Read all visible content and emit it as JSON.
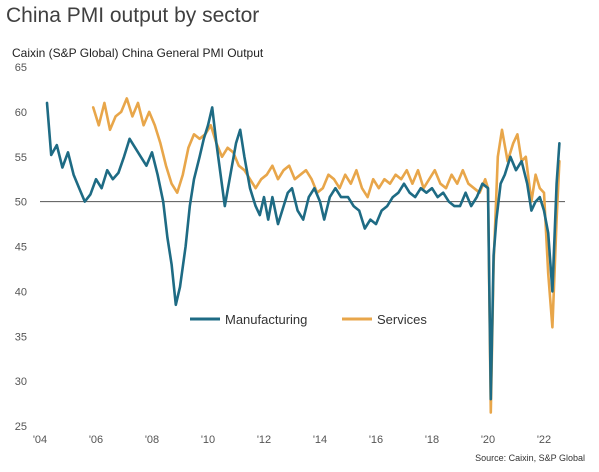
{
  "title": "China PMI output by sector",
  "subtitle": "Caixin (S&P Global) China General PMI Output",
  "source": "Source: Caixin, S&P Global",
  "colors": {
    "manufacturing": "#1e6b84",
    "services": "#e8a64a",
    "refline": "#555555"
  },
  "chart_data": {
    "type": "line",
    "ylim": [
      25,
      65
    ],
    "yticks": [
      25,
      30,
      35,
      40,
      45,
      50,
      55,
      60,
      65
    ],
    "xlim": [
      2004,
      2022.75
    ],
    "xticks": [
      {
        "value": 2004,
        "label": "'04"
      },
      {
        "value": 2006,
        "label": "'06"
      },
      {
        "value": 2008,
        "label": "'08"
      },
      {
        "value": 2010,
        "label": "'10"
      },
      {
        "value": 2012,
        "label": "'12"
      },
      {
        "value": 2014,
        "label": "'14"
      },
      {
        "value": 2016,
        "label": "'16"
      },
      {
        "value": 2018,
        "label": "'18"
      },
      {
        "value": 2020,
        "label": "'20"
      },
      {
        "value": 2022,
        "label": "'22"
      }
    ],
    "reference_line": 50,
    "legend": [
      "Manufacturing",
      "Services"
    ],
    "series": [
      {
        "name": "Manufacturing",
        "points": [
          [
            2004.25,
            61
          ],
          [
            2004.4,
            55.2
          ],
          [
            2004.6,
            56.3
          ],
          [
            2004.8,
            53.8
          ],
          [
            2005.0,
            55.5
          ],
          [
            2005.2,
            53.0
          ],
          [
            2005.4,
            51.5
          ],
          [
            2005.6,
            50.0
          ],
          [
            2005.8,
            50.8
          ],
          [
            2006.0,
            52.5
          ],
          [
            2006.2,
            51.5
          ],
          [
            2006.4,
            53.5
          ],
          [
            2006.6,
            52.5
          ],
          [
            2006.8,
            53.2
          ],
          [
            2007.0,
            55.0
          ],
          [
            2007.2,
            57.0
          ],
          [
            2007.4,
            56.0
          ],
          [
            2007.6,
            55.0
          ],
          [
            2007.8,
            54.0
          ],
          [
            2008.0,
            55.5
          ],
          [
            2008.2,
            53.0
          ],
          [
            2008.4,
            50.0
          ],
          [
            2008.55,
            46
          ],
          [
            2008.7,
            43
          ],
          [
            2008.85,
            38.5
          ],
          [
            2009.0,
            40.5
          ],
          [
            2009.2,
            45
          ],
          [
            2009.35,
            49.5
          ],
          [
            2009.5,
            52.5
          ],
          [
            2009.7,
            55
          ],
          [
            2009.85,
            57
          ],
          [
            2010.0,
            58.5
          ],
          [
            2010.15,
            60.5
          ],
          [
            2010.3,
            56.5
          ],
          [
            2010.45,
            53
          ],
          [
            2010.6,
            49.5
          ],
          [
            2010.8,
            53
          ],
          [
            2011.0,
            56.5
          ],
          [
            2011.15,
            58
          ],
          [
            2011.3,
            55
          ],
          [
            2011.5,
            51.5
          ],
          [
            2011.7,
            49.5
          ],
          [
            2011.85,
            48.5
          ],
          [
            2012.0,
            50.5
          ],
          [
            2012.15,
            48
          ],
          [
            2012.3,
            50.5
          ],
          [
            2012.5,
            47.5
          ],
          [
            2012.7,
            49.5
          ],
          [
            2012.85,
            51
          ],
          [
            2013.0,
            51.5
          ],
          [
            2013.2,
            49
          ],
          [
            2013.4,
            48
          ],
          [
            2013.6,
            50.5
          ],
          [
            2013.8,
            51.5
          ],
          [
            2014.0,
            50
          ],
          [
            2014.15,
            48
          ],
          [
            2014.35,
            50.5
          ],
          [
            2014.55,
            51.5
          ],
          [
            2014.75,
            50.5
          ],
          [
            2015.0,
            50.5
          ],
          [
            2015.2,
            49.5
          ],
          [
            2015.4,
            49
          ],
          [
            2015.6,
            47
          ],
          [
            2015.8,
            48
          ],
          [
            2016.0,
            47.5
          ],
          [
            2016.2,
            49
          ],
          [
            2016.4,
            49.5
          ],
          [
            2016.6,
            50.5
          ],
          [
            2016.8,
            51
          ],
          [
            2017.0,
            52
          ],
          [
            2017.2,
            51
          ],
          [
            2017.4,
            50.5
          ],
          [
            2017.6,
            51.5
          ],
          [
            2017.8,
            51
          ],
          [
            2018.0,
            51.5
          ],
          [
            2018.2,
            50.5
          ],
          [
            2018.4,
            51
          ],
          [
            2018.6,
            50
          ],
          [
            2018.8,
            49.5
          ],
          [
            2019.0,
            49.5
          ],
          [
            2019.2,
            51
          ],
          [
            2019.4,
            49.5
          ],
          [
            2019.6,
            50.5
          ],
          [
            2019.8,
            52
          ],
          [
            2020.0,
            51.5
          ],
          [
            2020.1,
            28
          ],
          [
            2020.2,
            44
          ],
          [
            2020.3,
            48
          ],
          [
            2020.45,
            52
          ],
          [
            2020.6,
            53
          ],
          [
            2020.8,
            55
          ],
          [
            2021.0,
            53.5
          ],
          [
            2021.2,
            54.5
          ],
          [
            2021.4,
            52
          ],
          [
            2021.55,
            49
          ],
          [
            2021.7,
            50
          ],
          [
            2021.85,
            50.5
          ],
          [
            2022.0,
            49
          ],
          [
            2022.15,
            46.5
          ],
          [
            2022.3,
            40
          ],
          [
            2022.45,
            52
          ],
          [
            2022.55,
            56.5
          ]
        ]
      },
      {
        "name": "Services",
        "points": [
          [
            2005.9,
            60.5
          ],
          [
            2006.1,
            58.5
          ],
          [
            2006.3,
            61
          ],
          [
            2006.5,
            58
          ],
          [
            2006.7,
            59.5
          ],
          [
            2006.9,
            60
          ],
          [
            2007.1,
            61.5
          ],
          [
            2007.3,
            59.5
          ],
          [
            2007.5,
            61
          ],
          [
            2007.7,
            58.5
          ],
          [
            2007.9,
            60
          ],
          [
            2008.1,
            58.5
          ],
          [
            2008.3,
            56.5
          ],
          [
            2008.5,
            54
          ],
          [
            2008.7,
            52
          ],
          [
            2008.9,
            51
          ],
          [
            2009.1,
            53
          ],
          [
            2009.3,
            56
          ],
          [
            2009.5,
            57.5
          ],
          [
            2009.7,
            57
          ],
          [
            2009.9,
            57.5
          ],
          [
            2010.1,
            58.5
          ],
          [
            2010.3,
            56.5
          ],
          [
            2010.5,
            55
          ],
          [
            2010.7,
            56
          ],
          [
            2010.9,
            55.5
          ],
          [
            2011.1,
            54
          ],
          [
            2011.3,
            53.5
          ],
          [
            2011.5,
            52.5
          ],
          [
            2011.7,
            51.5
          ],
          [
            2011.9,
            52.5
          ],
          [
            2012.1,
            53
          ],
          [
            2012.3,
            54
          ],
          [
            2012.5,
            52.5
          ],
          [
            2012.7,
            53.5
          ],
          [
            2012.9,
            54
          ],
          [
            2013.1,
            52.5
          ],
          [
            2013.3,
            53
          ],
          [
            2013.5,
            53.5
          ],
          [
            2013.7,
            52.5
          ],
          [
            2013.9,
            51
          ],
          [
            2014.1,
            51.5
          ],
          [
            2014.3,
            53
          ],
          [
            2014.5,
            52.5
          ],
          [
            2014.7,
            51.5
          ],
          [
            2014.9,
            53
          ],
          [
            2015.1,
            52
          ],
          [
            2015.3,
            53.5
          ],
          [
            2015.5,
            51.5
          ],
          [
            2015.7,
            50.5
          ],
          [
            2015.9,
            52.5
          ],
          [
            2016.1,
            51.5
          ],
          [
            2016.3,
            52.5
          ],
          [
            2016.5,
            52
          ],
          [
            2016.7,
            53
          ],
          [
            2016.9,
            52.5
          ],
          [
            2017.1,
            53.5
          ],
          [
            2017.3,
            52
          ],
          [
            2017.5,
            53.5
          ],
          [
            2017.7,
            51.5
          ],
          [
            2017.9,
            52.5
          ],
          [
            2018.1,
            53.5
          ],
          [
            2018.3,
            52
          ],
          [
            2018.5,
            51.5
          ],
          [
            2018.7,
            53
          ],
          [
            2018.9,
            52
          ],
          [
            2019.1,
            53.5
          ],
          [
            2019.3,
            52
          ],
          [
            2019.5,
            51.5
          ],
          [
            2019.7,
            51
          ],
          [
            2019.9,
            52.5
          ],
          [
            2020.0,
            51.5
          ],
          [
            2020.1,
            26.5
          ],
          [
            2020.2,
            43
          ],
          [
            2020.35,
            55
          ],
          [
            2020.5,
            58
          ],
          [
            2020.7,
            54.5
          ],
          [
            2020.9,
            56.5
          ],
          [
            2021.05,
            57.5
          ],
          [
            2021.2,
            54.5
          ],
          [
            2021.35,
            55
          ],
          [
            2021.55,
            50
          ],
          [
            2021.7,
            53
          ],
          [
            2021.85,
            51.5
          ],
          [
            2022.0,
            51
          ],
          [
            2022.15,
            42
          ],
          [
            2022.3,
            36
          ],
          [
            2022.45,
            48
          ],
          [
            2022.55,
            54.5
          ]
        ]
      }
    ]
  }
}
